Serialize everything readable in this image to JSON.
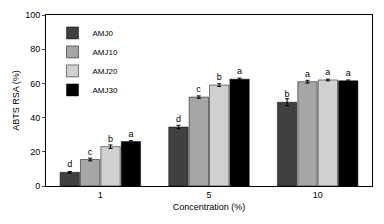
{
  "chart_data": {
    "type": "bar",
    "x_label": "Concentration (%)",
    "y_label": "ABTS RSA (%)",
    "categories": [
      "1",
      "5",
      "10"
    ],
    "series": [
      {
        "name": "AMJ0",
        "color": "#404040",
        "values": [
          8,
          34.5,
          49
        ],
        "error": [
          0.5,
          1,
          2
        ],
        "letters": [
          "d",
          "d",
          "b"
        ]
      },
      {
        "name": "AMJ10",
        "color": "#a6a6a6",
        "values": [
          15.5,
          52,
          61
        ],
        "error": [
          0.8,
          0.7,
          0.8
        ],
        "letters": [
          "c",
          "c",
          "a"
        ]
      },
      {
        "name": "AMJ20",
        "color": "#d0d0d0",
        "values": [
          23,
          59,
          62
        ],
        "error": [
          1,
          0.8,
          0.5
        ],
        "letters": [
          "b",
          "b",
          "a"
        ]
      },
      {
        "name": "AMJ30",
        "color": "#000000",
        "values": [
          26,
          62.5,
          61.5
        ],
        "error": [
          0.5,
          0.6,
          0.5
        ],
        "letters": [
          "a",
          "a",
          "a"
        ]
      }
    ],
    "ylim": [
      0,
      100
    ],
    "yticks": [
      0,
      20,
      40,
      60,
      80,
      100
    ],
    "grid": false,
    "legend": "top-left"
  }
}
